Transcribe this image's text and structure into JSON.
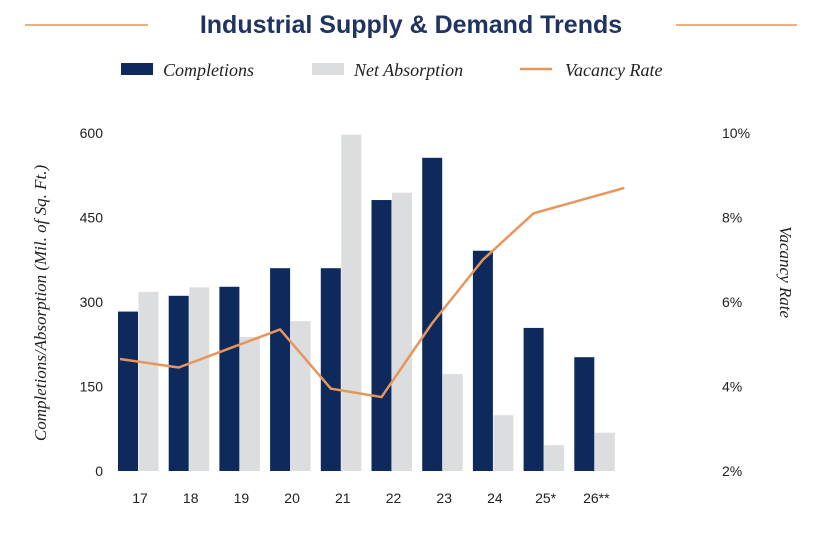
{
  "chart_data": {
    "type": "bar",
    "title": "Industrial Supply & Demand Trends",
    "categories": [
      "17",
      "18",
      "19",
      "20",
      "21",
      "22",
      "23",
      "24",
      "25*",
      "26**"
    ],
    "series": [
      {
        "name": "Completions",
        "type": "bar",
        "axis": "left",
        "color": "#0e2a5c",
        "values": [
          283,
          311,
          327,
          360,
          360,
          481,
          556,
          391,
          254,
          202
        ]
      },
      {
        "name": "Net Absorption",
        "type": "bar",
        "axis": "left",
        "color": "#dcdddf",
        "values": [
          318,
          326,
          238,
          266,
          597,
          494,
          172,
          99,
          46,
          68
        ]
      },
      {
        "name": "Vacancy Rate",
        "type": "line",
        "axis": "right",
        "color": "#e8955a",
        "values": [
          4.65,
          4.45,
          4.9,
          5.35,
          3.95,
          3.75,
          5.5,
          7.0,
          8.1,
          8.7
        ]
      }
    ],
    "ylabel": "Completions/Absorption (Mil. of Sq. Ft.)",
    "ylim": [
      0,
      600
    ],
    "yticks": [
      "0",
      "150",
      "300",
      "450",
      "600"
    ],
    "y2label": "Vacancy Rate",
    "y2lim": [
      2,
      10
    ],
    "y2ticks": [
      "2%",
      "4%",
      "6%",
      "8%",
      "10%"
    ],
    "grid": false,
    "legend": "top",
    "title_rule_color": "#e8955a"
  }
}
